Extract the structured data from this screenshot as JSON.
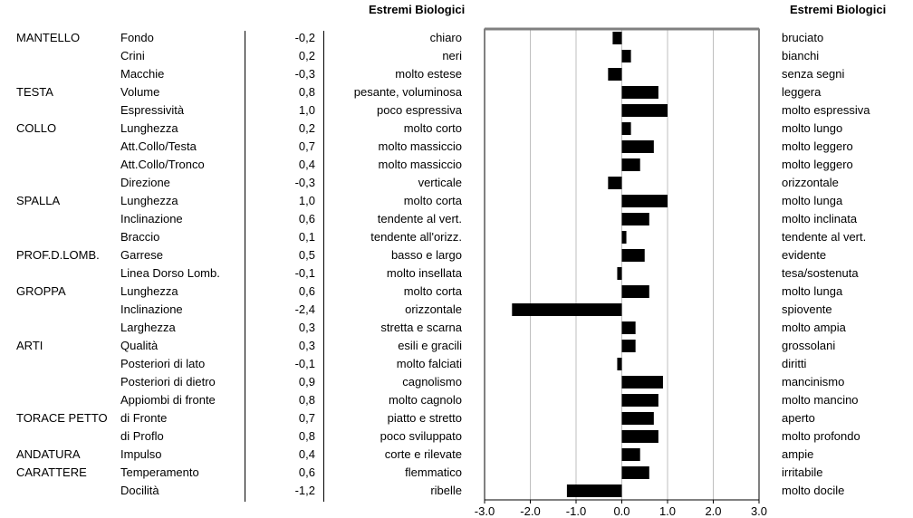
{
  "header_left": "Estremi Biologici",
  "header_right": "Estremi Biologici",
  "rows": [
    {
      "group": "MANTELLO",
      "trait": "Fondo",
      "value_label": "-0,2",
      "left_extreme": "chiaro",
      "right_extreme": "bruciato"
    },
    {
      "group": "",
      "trait": "Crini",
      "value_label": "0,2",
      "left_extreme": "neri",
      "right_extreme": "bianchi"
    },
    {
      "group": "",
      "trait": "Macchie",
      "value_label": "-0,3",
      "left_extreme": "molto estese",
      "right_extreme": "senza segni"
    },
    {
      "group": "TESTA",
      "trait": "Volume",
      "value_label": "0,8",
      "left_extreme": "pesante, voluminosa",
      "right_extreme": "leggera"
    },
    {
      "group": "",
      "trait": "Espressività",
      "value_label": "1,0",
      "left_extreme": "poco espressiva",
      "right_extreme": "molto espressiva"
    },
    {
      "group": "COLLO",
      "trait": "Lunghezza",
      "value_label": "0,2",
      "left_extreme": "molto corto",
      "right_extreme": "molto lungo"
    },
    {
      "group": "",
      "trait": "Att.Collo/Testa",
      "value_label": "0,7",
      "left_extreme": "molto massiccio",
      "right_extreme": "molto leggero"
    },
    {
      "group": "",
      "trait": "Att.Collo/Tronco",
      "value_label": "0,4",
      "left_extreme": "molto massiccio",
      "right_extreme": "molto leggero"
    },
    {
      "group": "",
      "trait": "Direzione",
      "value_label": "-0,3",
      "left_extreme": "verticale",
      "right_extreme": "orizzontale"
    },
    {
      "group": "SPALLA",
      "trait": "Lunghezza",
      "value_label": "1,0",
      "left_extreme": "molto corta",
      "right_extreme": "molto lunga"
    },
    {
      "group": "",
      "trait": "Inclinazione",
      "value_label": "0,6",
      "left_extreme": "tendente al vert.",
      "right_extreme": "molto inclinata"
    },
    {
      "group": "",
      "trait": "Braccio",
      "value_label": "0,1",
      "left_extreme": "tendente all'orizz.",
      "right_extreme": "tendente al vert."
    },
    {
      "group": "PROF.D.LOMB.",
      "trait": "Garrese",
      "value_label": "0,5",
      "left_extreme": "basso e largo",
      "right_extreme": "evidente"
    },
    {
      "group": "",
      "trait": "Linea Dorso Lomb.",
      "value_label": "-0,1",
      "left_extreme": "molto insellata",
      "right_extreme": "tesa/sostenuta"
    },
    {
      "group": "GROPPA",
      "trait": "Lunghezza",
      "value_label": "0,6",
      "left_extreme": "molto corta",
      "right_extreme": "molto lunga"
    },
    {
      "group": "",
      "trait": "Inclinazione",
      "value_label": "-2,4",
      "left_extreme": "orizzontale",
      "right_extreme": "spiovente"
    },
    {
      "group": "",
      "trait": "Larghezza",
      "value_label": "0,3",
      "left_extreme": "stretta e scarna",
      "right_extreme": "molto ampia"
    },
    {
      "group": "ARTI",
      "trait": "Qualità",
      "value_label": "0,3",
      "left_extreme": "esili e gracili",
      "right_extreme": "grossolani"
    },
    {
      "group": "",
      "trait": "Posteriori di lato",
      "value_label": "-0,1",
      "left_extreme": "molto falciati",
      "right_extreme": "diritti"
    },
    {
      "group": "",
      "trait": "Posteriori di dietro",
      "value_label": "0,9",
      "left_extreme": "cagnolismo",
      "right_extreme": "mancinismo"
    },
    {
      "group": "",
      "trait": "Appiombi di fronte",
      "value_label": "0,8",
      "left_extreme": "molto cagnolo",
      "right_extreme": "molto mancino"
    },
    {
      "group": "TORACE PETTO",
      "trait": "di Fronte",
      "value_label": "0,7",
      "left_extreme": "piatto e stretto",
      "right_extreme": "aperto"
    },
    {
      "group": "",
      "trait": "di Proflo",
      "value_label": "0,8",
      "left_extreme": "poco sviluppato",
      "right_extreme": "molto profondo"
    },
    {
      "group": "ANDATURA",
      "trait": "Impulso",
      "value_label": "0,4",
      "left_extreme": "corte e rilevate",
      "right_extreme": "ampie"
    },
    {
      "group": "CARATTERE",
      "trait": "Temperamento",
      "value_label": "0,6",
      "left_extreme": "flemmatico",
      "right_extreme": "irritabile"
    },
    {
      "group": "",
      "trait": "Docilità",
      "value_label": "-1,2",
      "left_extreme": "ribelle",
      "right_extreme": "molto docile"
    }
  ],
  "chart_data": {
    "type": "bar",
    "orientation": "horizontal",
    "categories": [
      "Fondo",
      "Crini",
      "Macchie",
      "Volume",
      "Espressività",
      "Lunghezza",
      "Att.Collo/Testa",
      "Att.Collo/Tronco",
      "Direzione",
      "Lunghezza",
      "Inclinazione",
      "Braccio",
      "Garrese",
      "Linea Dorso Lomb.",
      "Lunghezza",
      "Inclinazione",
      "Larghezza",
      "Qualità",
      "Posteriori di lato",
      "Posteriori di dietro",
      "Appiombi di fronte",
      "di Fronte",
      "di Proflo",
      "Impulso",
      "Temperamento",
      "Docilità"
    ],
    "values": [
      -0.2,
      0.2,
      -0.3,
      0.8,
      1.0,
      0.2,
      0.7,
      0.4,
      -0.3,
      1.0,
      0.6,
      0.1,
      0.5,
      -0.1,
      0.6,
      -2.4,
      0.3,
      0.3,
      -0.1,
      0.9,
      0.8,
      0.7,
      0.8,
      0.4,
      0.6,
      -1.2
    ],
    "xlim": [
      -3.0,
      3.0
    ],
    "x_ticks": [
      -3.0,
      -2.0,
      -1.0,
      0.0,
      1.0,
      2.0,
      3.0
    ],
    "x_tick_labels": [
      "-3.0",
      "-2.0",
      "-1.0",
      "0.0",
      "1.0",
      "2.0",
      "3.0"
    ],
    "grid": true,
    "bar_color": "#000000",
    "grid_color": "#bfbfbf"
  }
}
